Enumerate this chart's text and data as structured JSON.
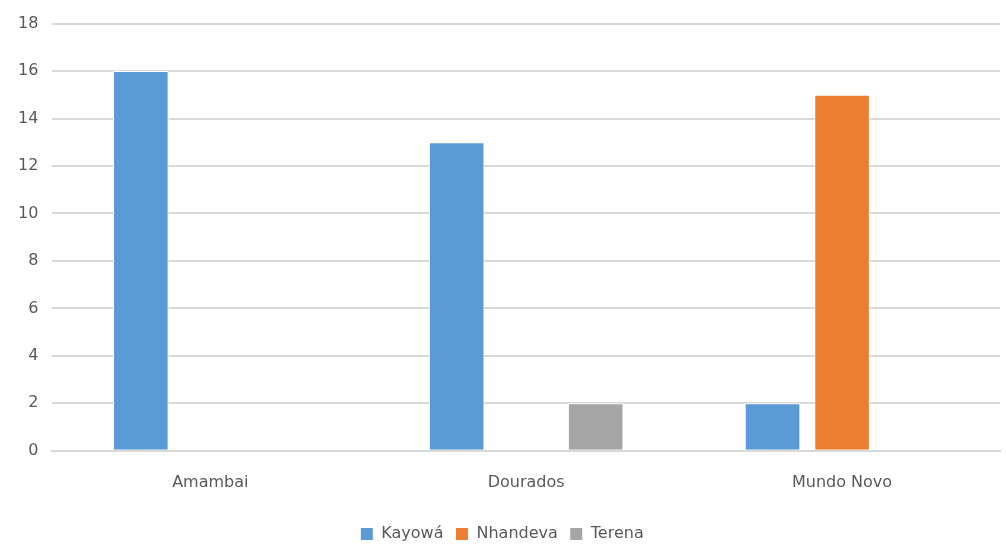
{
  "chart_data": {
    "type": "bar",
    "categories": [
      "Amambai",
      "Dourados",
      "Mundo Novo"
    ],
    "series": [
      {
        "name": "Kayowá",
        "color": "#5b9bd5",
        "values": [
          16,
          13,
          2
        ]
      },
      {
        "name": "Nhandeva",
        "color": "#ed7d31",
        "values": [
          null,
          null,
          15
        ]
      },
      {
        "name": "Terena",
        "color": "#a5a5a5",
        "values": [
          null,
          2,
          null
        ]
      }
    ],
    "ylim": [
      0,
      18
    ],
    "yticks": [
      0,
      2,
      4,
      6,
      8,
      10,
      12,
      14,
      16,
      18
    ],
    "grid": "y",
    "legend": "bottom"
  }
}
